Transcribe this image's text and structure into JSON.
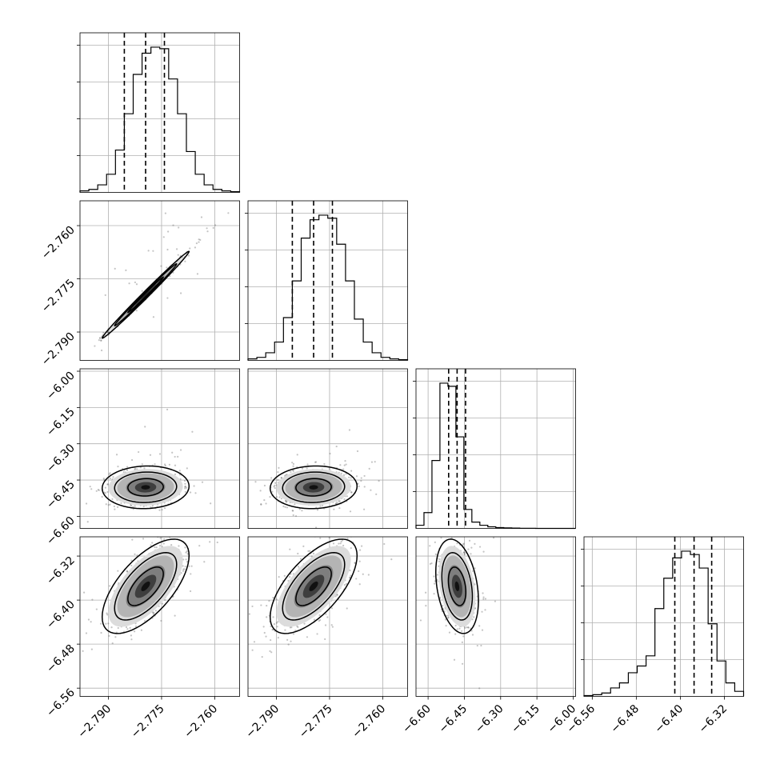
{
  "colors": {
    "ink": "#000000",
    "grid": "#b0b0b0",
    "samples": "#555555",
    "density_dark": "#111111",
    "density_light": "#cfcfcf"
  },
  "chart_data": {
    "type": "corner",
    "grid": true,
    "title": "",
    "n_params": 4,
    "params": [
      {
        "label": "",
        "range": [
          -2.798,
          -2.753
        ],
        "ticks": [
          -2.79,
          -2.775,
          -2.76
        ],
        "tick_labels": [
          "−2.790",
          "−2.775",
          "−2.760"
        ],
        "quantiles": [
          -2.7855,
          -2.7795,
          -2.7742
        ],
        "hist": [
          0.01,
          0.02,
          0.05,
          0.12,
          0.28,
          0.52,
          0.78,
          0.92,
          0.96,
          0.95,
          0.75,
          0.52,
          0.27,
          0.12,
          0.05,
          0.02,
          0.01,
          0.005
        ]
      },
      {
        "label": "",
        "range": [
          -2.798,
          -2.753
        ],
        "ticks": [
          -2.79,
          -2.775,
          -2.76
        ],
        "tick_labels": [
          "−2.790",
          "−2.775",
          "−2.760"
        ],
        "quantiles": [
          -2.7855,
          -2.7795,
          -2.7742
        ],
        "hist": [
          0.01,
          0.02,
          0.05,
          0.12,
          0.28,
          0.52,
          0.8,
          0.92,
          0.95,
          0.93,
          0.76,
          0.52,
          0.27,
          0.12,
          0.05,
          0.02,
          0.01,
          0.005
        ]
      },
      {
        "label": "",
        "range": [
          -6.65,
          -5.99
        ],
        "ticks": [
          -6.6,
          -6.45,
          -6.3,
          -6.15,
          -6.0
        ],
        "tick_labels": [
          "−6.60",
          "−6.45",
          "−6.30",
          "−6.15",
          "−6.00"
        ],
        "quantiles": [
          -6.515,
          -6.48,
          -6.445
        ],
        "hist": [
          0.02,
          0.1,
          0.43,
          0.92,
          0.9,
          0.58,
          0.12,
          0.04,
          0.02,
          0.01,
          0.005,
          0.003,
          0.002,
          0.001,
          0.001,
          0.0,
          0.0,
          0.0,
          0.0,
          0.0
        ]
      },
      {
        "label": "",
        "range": [
          -6.575,
          -6.285
        ],
        "ticks": [
          -6.56,
          -6.48,
          -6.4,
          -6.32
        ],
        "tick_labels": [
          "−6.56",
          "−6.48",
          "−6.40",
          "−6.32"
        ],
        "quantiles": [
          -6.41,
          -6.375,
          -6.343
        ],
        "hist": [
          0.005,
          0.01,
          0.02,
          0.05,
          0.08,
          0.14,
          0.18,
          0.24,
          0.52,
          0.7,
          0.82,
          0.86,
          0.84,
          0.76,
          0.43,
          0.21,
          0.08,
          0.03
        ]
      }
    ],
    "pairs": [
      {
        "x": 0,
        "y": 1,
        "center": [
          -2.7795,
          -2.7795
        ],
        "sigma": [
          0.005,
          0.005
        ],
        "rho": 0.995
      },
      {
        "x": 0,
        "y": 2,
        "center": [
          -2.7795,
          -6.48
        ],
        "sigma": [
          0.005,
          0.036
        ],
        "rho": 0.05
      },
      {
        "x": 1,
        "y": 2,
        "center": [
          -2.7795,
          -6.48
        ],
        "sigma": [
          0.005,
          0.036
        ],
        "rho": 0.05
      },
      {
        "x": 0,
        "y": 3,
        "center": [
          -2.7795,
          -6.375
        ],
        "sigma": [
          0.005,
          0.035
        ],
        "rho": 0.65
      },
      {
        "x": 1,
        "y": 3,
        "center": [
          -2.7795,
          -6.375
        ],
        "sigma": [
          0.005,
          0.035
        ],
        "rho": 0.65
      },
      {
        "x": 2,
        "y": 3,
        "center": [
          -6.48,
          -6.375
        ],
        "sigma": [
          0.036,
          0.035
        ],
        "rho": -0.3
      }
    ]
  }
}
